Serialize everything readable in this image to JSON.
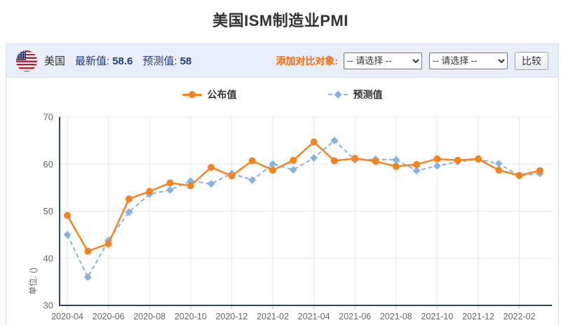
{
  "page": {
    "title": "美国ISM制造业PMI"
  },
  "header": {
    "country": "美国",
    "latest_label": "最新值:",
    "latest_value": "58.6",
    "forecast_label": "预测值:",
    "forecast_value": "58",
    "compare_label": "添加对比对象:",
    "select1_value": "-- 请选择 --",
    "select2_value": "-- 请选择 --",
    "compare_button": "比较"
  },
  "colors": {
    "published": "#f8821e",
    "forecast": "#85b3e2",
    "axis": "#2c4470",
    "grid": "#e6e7ef",
    "tick": "#b9c2d8",
    "tick_text": "#666666",
    "accent_orange": "#ff6600",
    "navy_text": "#1d3c82"
  },
  "chart_data": {
    "type": "line",
    "title": "美国ISM制造业PMI",
    "ylabel": "单位: ()",
    "ylim": [
      30,
      70
    ],
    "y_ticks": [
      30,
      40,
      50,
      60,
      70
    ],
    "grid": true,
    "legend_position": "top-center",
    "categories": [
      "2020-04",
      "2020-05",
      "2020-06",
      "2020-07",
      "2020-08",
      "2020-09",
      "2020-10",
      "2020-11",
      "2020-12",
      "2021-01",
      "2021-02",
      "2021-03",
      "2021-04",
      "2021-05",
      "2021-06",
      "2021-07",
      "2021-08",
      "2021-09",
      "2021-10",
      "2021-11",
      "2021-12",
      "2022-01",
      "2022-02",
      "2022-03"
    ],
    "x_tick_labels": [
      "2020-04",
      "2020-06",
      "2020-08",
      "2020-10",
      "2020-12",
      "2021-02",
      "2021-04",
      "2021-06",
      "2021-08",
      "2021-10",
      "2021-12",
      "2022-02"
    ],
    "series": [
      {
        "name": "公布值",
        "style": "solid-circle",
        "color": "#f8821e",
        "values": [
          49.1,
          41.5,
          43.1,
          52.6,
          54.2,
          56.0,
          55.4,
          59.3,
          57.5,
          60.7,
          58.7,
          60.8,
          64.7,
          60.7,
          61.2,
          60.6,
          59.5,
          59.9,
          61.1,
          60.8,
          61.1,
          58.7,
          57.6,
          58.6
        ]
      },
      {
        "name": "预测值",
        "style": "dashed-diamond",
        "color": "#85b3e2",
        "values": [
          45,
          36,
          43.8,
          49.8,
          53.6,
          54.5,
          56.4,
          55.8,
          58,
          56.6,
          60,
          58.8,
          61.3,
          65,
          60.9,
          61,
          60.9,
          58.6,
          59.6,
          60.5,
          61,
          60.1,
          57.5,
          58
        ]
      }
    ]
  }
}
